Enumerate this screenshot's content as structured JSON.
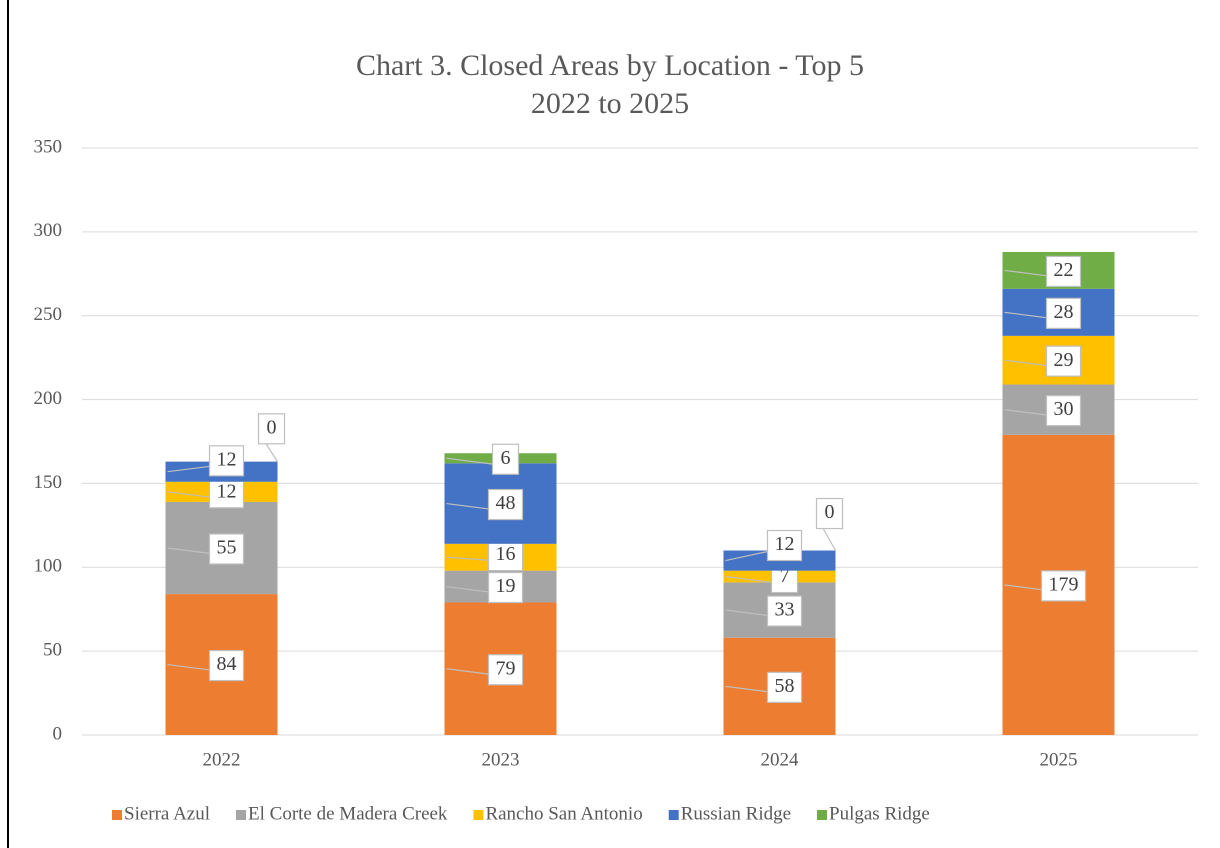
{
  "chart_data": {
    "type": "stacked_bar",
    "title": "Chart 3. Closed Areas by Location - Top 5",
    "subtitle": "2022 to 2025",
    "categories": [
      "2022",
      "2023",
      "2024",
      "2025"
    ],
    "series": [
      {
        "name": "Sierra Azul",
        "color": "#ed7d31",
        "values": [
          84,
          79,
          58,
          179
        ]
      },
      {
        "name": "El Corte de Madera Creek",
        "color": "#a5a5a5",
        "values": [
          55,
          19,
          33,
          30
        ]
      },
      {
        "name": "Rancho San Antonio",
        "color": "#ffc000",
        "values": [
          12,
          16,
          7,
          29
        ]
      },
      {
        "name": "Russian Ridge",
        "color": "#4472c4",
        "values": [
          12,
          48,
          12,
          28
        ]
      },
      {
        "name": "Pulgas Ridge",
        "color": "#70ad47",
        "values": [
          0,
          6,
          0,
          22
        ]
      }
    ],
    "ylim": [
      0,
      350
    ],
    "yticks": [
      0,
      50,
      100,
      150,
      200,
      250,
      300,
      350
    ],
    "grid": true,
    "legend": "bottom"
  }
}
